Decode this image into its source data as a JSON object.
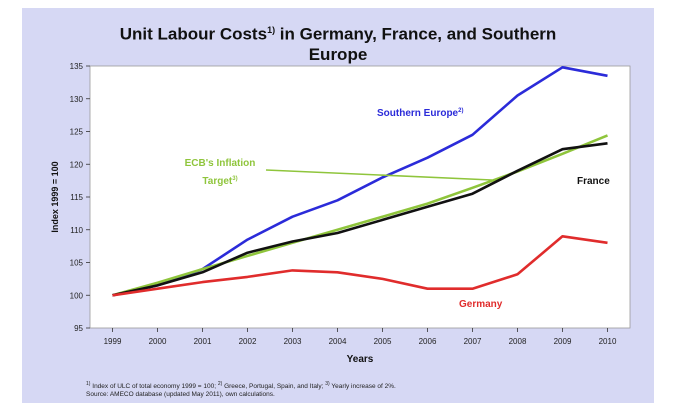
{
  "chart_data": {
    "type": "line",
    "title_parts": [
      "Unit Labour Costs",
      "1)",
      " in Germany, France, and Southern",
      "Europe"
    ],
    "xlabel": "Years",
    "ylabel": "Index 1999 = 100",
    "x": [
      "1999",
      "2000",
      "2001",
      "2002",
      "2003",
      "2004",
      "2005",
      "2006",
      "2007",
      "2008",
      "2009",
      "2010"
    ],
    "ylim": [
      95,
      135
    ],
    "yticks": [
      "95",
      "100",
      "105",
      "110",
      "115",
      "120",
      "125",
      "130",
      "135"
    ],
    "grid": false,
    "series": [
      {
        "name": "Southern Europe",
        "sup": "2)",
        "color": "#2b2bd9",
        "values": [
          100,
          101.5,
          104,
          108.5,
          112,
          114.5,
          118,
          121,
          124.5,
          130.5,
          134.8,
          133.5
        ]
      },
      {
        "name": "ECB's Inflation Target",
        "name_line2": "Target",
        "sup": "3)",
        "color": "#8fc53c",
        "values": [
          100,
          101.9,
          104,
          106,
          108,
          110,
          112,
          114,
          116.4,
          118.9,
          121.6,
          124.4
        ]
      },
      {
        "name": "France",
        "sup": "",
        "color": "#111111",
        "values": [
          100,
          101.5,
          103.5,
          106.5,
          108.2,
          109.5,
          111.5,
          113.5,
          115.5,
          119,
          122.3,
          123.2
        ]
      },
      {
        "name": "Germany",
        "sup": "",
        "color": "#e02c2c",
        "values": [
          100,
          101,
          102,
          102.8,
          103.8,
          103.5,
          102.5,
          101,
          101,
          103.2,
          109,
          108
        ]
      }
    ],
    "labels": {
      "southern": "Southern Europe",
      "southern_sup": "2)",
      "ecb_line1": "ECB's Inflation",
      "ecb_line2": "Target",
      "ecb_sup": "3)",
      "france": "France",
      "germany": "Germany"
    }
  },
  "footnote": {
    "sup1": "1)",
    "text1": " Index of ULC of total economy 1999 = 100; ",
    "sup2": "2)",
    "text2": " Greece, Portugal, Spain, and Italy; ",
    "sup3": "3)",
    "text3": " Yearly increase of 2%.",
    "line2": "Source: AMECO database (updated May 2011), own calculations."
  },
  "colors": {
    "background": "#d6d8f4",
    "plot_area": "#ffffff"
  }
}
